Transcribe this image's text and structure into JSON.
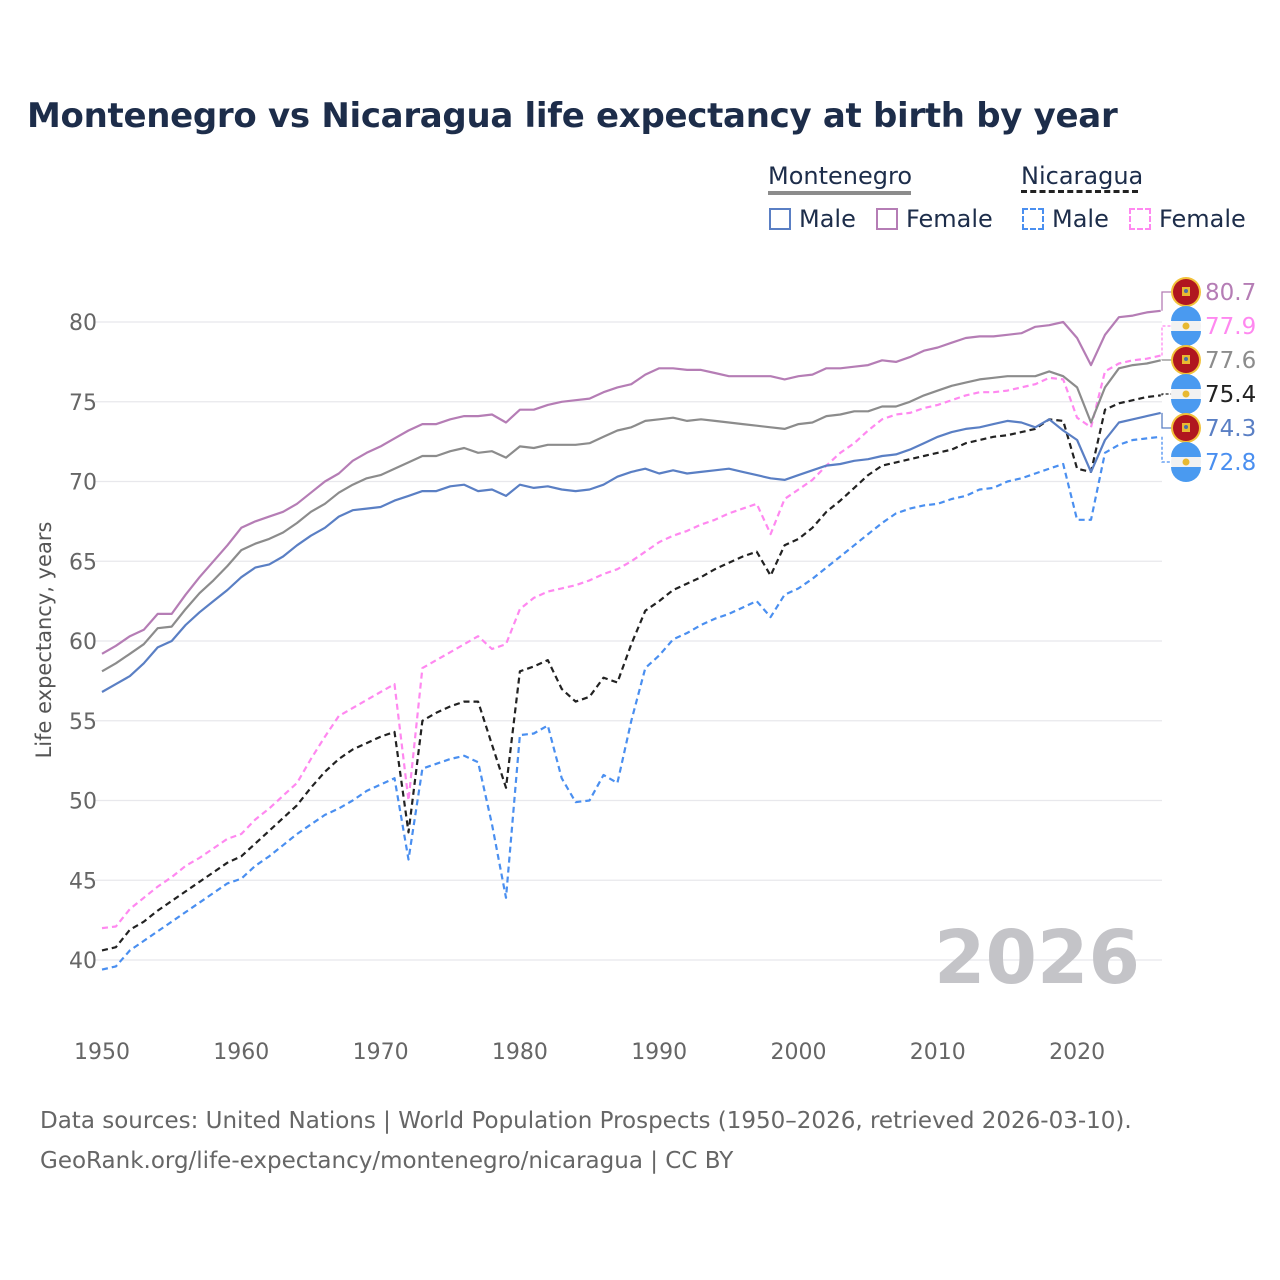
{
  "title": "Montenegro vs Nicaragua life expectancy at birth by year",
  "legend": {
    "groups": [
      {
        "name": "Montenegro",
        "male_label": "Male",
        "female_label": "Female"
      },
      {
        "name": "Nicaragua",
        "male_label": "Male",
        "female_label": "Female"
      }
    ]
  },
  "year_watermark": "2026",
  "source_line1": "Data sources: United Nations | World Population Prospects (1950–2026, retrieved 2026-03-10).",
  "source_line2": "GeoRank.org/life-expectancy/montenegro/nicaragua | CC BY",
  "chart_data": {
    "type": "line",
    "title": "Montenegro vs Nicaragua life expectancy at birth by year",
    "xlabel": "",
    "ylabel": "Life expectancy, years",
    "xlim": [
      1950,
      2026
    ],
    "ylim": [
      38,
      83
    ],
    "xticks": [
      1950,
      1960,
      1970,
      1980,
      1990,
      2000,
      2010,
      2020
    ],
    "yticks": [
      40,
      45,
      50,
      55,
      60,
      65,
      70,
      75,
      80
    ],
    "grid": true,
    "legend_position": "top-right",
    "x_start": 1950,
    "series": [
      {
        "name": "Montenegro Female",
        "country": "Montenegro",
        "color": "#b57db5",
        "dashed": false,
        "end_label": "80.7",
        "values": [
          59.2,
          59.7,
          60.3,
          60.7,
          61.7,
          61.7,
          62.9,
          64.0,
          65.0,
          66.0,
          67.1,
          67.5,
          67.8,
          68.1,
          68.6,
          69.3,
          70.0,
          70.5,
          71.3,
          71.8,
          72.2,
          72.7,
          73.2,
          73.6,
          73.6,
          73.9,
          74.1,
          74.1,
          74.2,
          73.7,
          74.5,
          74.5,
          74.8,
          75.0,
          75.1,
          75.2,
          75.6,
          75.9,
          76.1,
          76.7,
          77.1,
          77.1,
          77.0,
          77.0,
          76.8,
          76.6,
          76.6,
          76.6,
          76.6,
          76.4,
          76.6,
          76.7,
          77.1,
          77.1,
          77.2,
          77.3,
          77.6,
          77.5,
          77.8,
          78.2,
          78.4,
          78.7,
          79.0,
          79.1,
          79.1,
          79.2,
          79.3,
          79.7,
          79.8,
          80.0,
          79.0,
          77.3,
          79.2,
          80.3,
          80.4,
          80.6,
          80.7
        ]
      },
      {
        "name": "Nicaragua Female",
        "country": "Nicaragua",
        "color": "#ff88f0",
        "dashed": true,
        "end_label": "77.9",
        "values": [
          42.0,
          42.1,
          43.2,
          43.9,
          44.6,
          45.2,
          45.9,
          46.4,
          47.0,
          47.6,
          47.9,
          48.8,
          49.5,
          50.3,
          51.1,
          52.6,
          54.0,
          55.3,
          55.8,
          56.3,
          56.8,
          57.3,
          50.0,
          58.3,
          58.8,
          59.3,
          59.8,
          60.3,
          59.5,
          59.8,
          62.0,
          62.7,
          63.1,
          63.3,
          63.5,
          63.8,
          64.2,
          64.5,
          65.0,
          65.6,
          66.2,
          66.6,
          66.9,
          67.3,
          67.6,
          68.0,
          68.3,
          68.6,
          66.7,
          68.9,
          69.5,
          70.1,
          71.0,
          71.8,
          72.4,
          73.2,
          73.9,
          74.2,
          74.3,
          74.6,
          74.8,
          75.1,
          75.4,
          75.6,
          75.6,
          75.7,
          75.9,
          76.1,
          76.5,
          76.4,
          74.0,
          73.4,
          76.9,
          77.4,
          77.6,
          77.7,
          77.9
        ]
      },
      {
        "name": "Montenegro Total",
        "country": "Montenegro",
        "color": "#8c8c8c",
        "dashed": false,
        "end_label": "77.6",
        "values": [
          58.1,
          58.6,
          59.2,
          59.8,
          60.8,
          60.9,
          62.0,
          63.0,
          63.8,
          64.7,
          65.7,
          66.1,
          66.4,
          66.8,
          67.4,
          68.1,
          68.6,
          69.3,
          69.8,
          70.2,
          70.4,
          70.8,
          71.2,
          71.6,
          71.6,
          71.9,
          72.1,
          71.8,
          71.9,
          71.5,
          72.2,
          72.1,
          72.3,
          72.3,
          72.3,
          72.4,
          72.8,
          73.2,
          73.4,
          73.8,
          73.9,
          74.0,
          73.8,
          73.9,
          73.8,
          73.7,
          73.6,
          73.5,
          73.4,
          73.3,
          73.6,
          73.7,
          74.1,
          74.2,
          74.4,
          74.4,
          74.7,
          74.7,
          75.0,
          75.4,
          75.7,
          76.0,
          76.2,
          76.4,
          76.5,
          76.6,
          76.6,
          76.6,
          76.9,
          76.6,
          75.9,
          73.7,
          75.9,
          77.1,
          77.3,
          77.4,
          77.6
        ]
      },
      {
        "name": "Nicaragua Total",
        "country": "Nicaragua",
        "color": "#222222",
        "dashed": true,
        "end_label": "75.4",
        "values": [
          40.6,
          40.8,
          41.9,
          42.4,
          43.1,
          43.7,
          44.3,
          44.9,
          45.5,
          46.1,
          46.5,
          47.3,
          48.1,
          48.9,
          49.7,
          50.8,
          51.8,
          52.6,
          53.2,
          53.6,
          54.0,
          54.3,
          48.0,
          55.0,
          55.5,
          55.9,
          56.2,
          56.2,
          53.5,
          50.8,
          58.1,
          58.4,
          58.8,
          57.0,
          56.2,
          56.5,
          57.7,
          57.4,
          59.8,
          61.9,
          62.5,
          63.2,
          63.6,
          64.0,
          64.5,
          64.9,
          65.3,
          65.6,
          64.1,
          66.0,
          66.4,
          67.1,
          68.1,
          68.8,
          69.6,
          70.4,
          71.0,
          71.2,
          71.4,
          71.6,
          71.8,
          72.0,
          72.4,
          72.6,
          72.8,
          72.9,
          73.1,
          73.3,
          73.9,
          73.8,
          70.8,
          70.6,
          74.5,
          74.9,
          75.1,
          75.3,
          75.4
        ]
      },
      {
        "name": "Montenegro Male",
        "country": "Montenegro",
        "color": "#5a7fc4",
        "dashed": false,
        "end_label": "74.3",
        "values": [
          56.8,
          57.3,
          57.8,
          58.6,
          59.6,
          60.0,
          61.0,
          61.8,
          62.5,
          63.2,
          64.0,
          64.6,
          64.8,
          65.3,
          66.0,
          66.6,
          67.1,
          67.8,
          68.2,
          68.3,
          68.4,
          68.8,
          69.1,
          69.4,
          69.4,
          69.7,
          69.8,
          69.4,
          69.5,
          69.1,
          69.8,
          69.6,
          69.7,
          69.5,
          69.4,
          69.5,
          69.8,
          70.3,
          70.6,
          70.8,
          70.5,
          70.7,
          70.5,
          70.6,
          70.7,
          70.8,
          70.6,
          70.4,
          70.2,
          70.1,
          70.4,
          70.7,
          71.0,
          71.1,
          71.3,
          71.4,
          71.6,
          71.7,
          72.0,
          72.4,
          72.8,
          73.1,
          73.3,
          73.4,
          73.6,
          73.8,
          73.7,
          73.4,
          73.9,
          73.2,
          72.6,
          70.6,
          72.6,
          73.7,
          73.9,
          74.1,
          74.3
        ]
      },
      {
        "name": "Nicaragua Male",
        "country": "Nicaragua",
        "color": "#4a8ff0",
        "dashed": true,
        "end_label": "72.8",
        "values": [
          39.4,
          39.6,
          40.6,
          41.2,
          41.8,
          42.4,
          43.0,
          43.6,
          44.2,
          44.8,
          45.1,
          45.9,
          46.5,
          47.2,
          47.9,
          48.5,
          49.1,
          49.5,
          50.0,
          50.6,
          51.0,
          51.4,
          46.3,
          52.0,
          52.3,
          52.6,
          52.8,
          52.4,
          48.5,
          43.9,
          54.1,
          54.2,
          54.7,
          51.4,
          49.9,
          50.0,
          51.6,
          51.1,
          55.0,
          58.3,
          59.1,
          60.1,
          60.5,
          61.0,
          61.4,
          61.7,
          62.1,
          62.5,
          61.5,
          62.9,
          63.3,
          63.9,
          64.6,
          65.3,
          66.0,
          66.7,
          67.4,
          68.0,
          68.3,
          68.5,
          68.6,
          68.9,
          69.1,
          69.5,
          69.6,
          70.0,
          70.2,
          70.5,
          70.8,
          71.1,
          67.6,
          67.6,
          71.8,
          72.3,
          72.6,
          72.7,
          72.8
        ]
      }
    ]
  }
}
